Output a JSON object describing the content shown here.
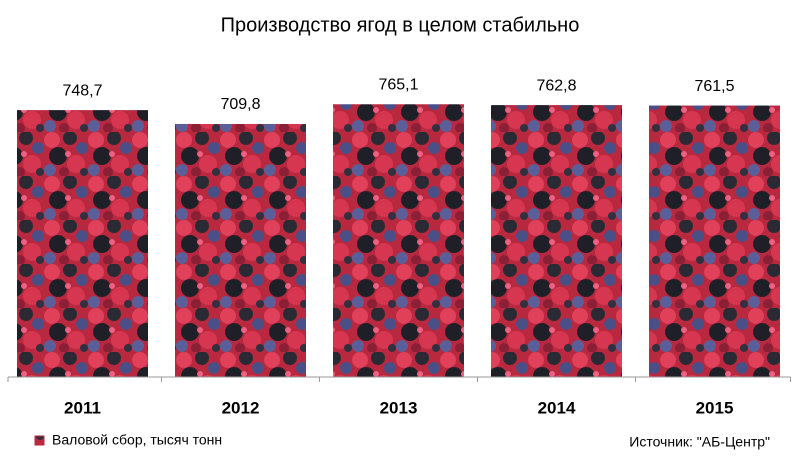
{
  "chart_data": {
    "type": "bar",
    "title": "Производство ягод в целом стабильно",
    "categories": [
      "2011",
      "2012",
      "2013",
      "2014",
      "2015"
    ],
    "series": [
      {
        "name": "Валовой сбор, тысяч тонн",
        "color": "#b8283f",
        "values": [
          748.7,
          709.8,
          765.1,
          762.8,
          761.5
        ],
        "value_labels": [
          "748,7",
          "709,8",
          "765,1",
          "762,8",
          "761,5"
        ]
      }
    ],
    "ylim": [
      0,
      850
    ],
    "source": "Источник: \"АБ-Центр\""
  }
}
